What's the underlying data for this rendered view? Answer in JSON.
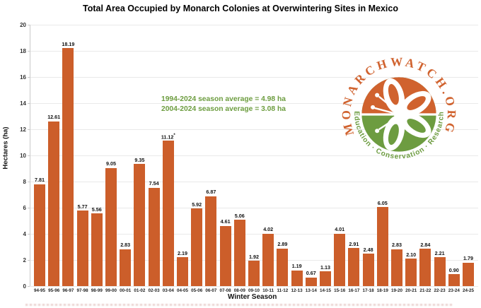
{
  "annotation": {
    "line1": "1994-2024 season average = 4.98 ha",
    "line2": "2004-2024 season average = 3.08 ha",
    "color": "#6d9d40"
  },
  "logo": {
    "top_text": "MONARCHWATCH.ORG",
    "bottom_text": "Education · Conservation · Research",
    "orange": "#d0622e",
    "green": "#6d9c40"
  },
  "chart_data": {
    "type": "bar",
    "title": "Total Area Occupied by Monarch Colonies at Overwintering Sites in Mexico",
    "xlabel": "Winter Season",
    "ylabel": "Hectares (ha)",
    "ylim": [
      0,
      20
    ],
    "ytick_step": 2,
    "grid": true,
    "legend": "none",
    "bar_color": "#cc5e2a",
    "categories": [
      "94-95",
      "95-96",
      "96-97",
      "97-98",
      "98-99",
      "99-00",
      "00-01",
      "01-02",
      "02-03",
      "03-04",
      "04-05",
      "05-06",
      "06-07",
      "07-08",
      "08-09",
      "09-10",
      "10-11",
      "11-12",
      "12-13",
      "13-14",
      "14-15",
      "15-16",
      "16-17",
      "17-18",
      "18-19",
      "19-20",
      "20-21",
      "21-22",
      "22-23",
      "23-24",
      "24-25"
    ],
    "values": [
      7.81,
      12.61,
      18.19,
      5.77,
      5.56,
      9.05,
      2.83,
      9.35,
      7.54,
      11.12,
      2.19,
      5.92,
      6.87,
      4.61,
      5.06,
      1.92,
      4.02,
      2.89,
      1.19,
      0.67,
      1.13,
      4.01,
      2.91,
      2.48,
      6.05,
      2.83,
      2.1,
      2.84,
      2.21,
      0.9,
      1.79
    ],
    "value_labels": [
      "7.81",
      "12.61",
      "18.19",
      "5.77",
      "5.56",
      "9.05",
      "2.83",
      "9.35",
      "7.54",
      "11.12*",
      "2.19",
      "5.92",
      "6.87",
      "4.61",
      "5.06",
      "1.92",
      "4.02",
      "2.89",
      "1.19",
      "0.67",
      "1.13",
      "4.01",
      "2.91",
      "2.48",
      "6.05",
      "2.83",
      "2.10",
      "2.84",
      "2.21",
      "0.90",
      "1.79"
    ]
  }
}
